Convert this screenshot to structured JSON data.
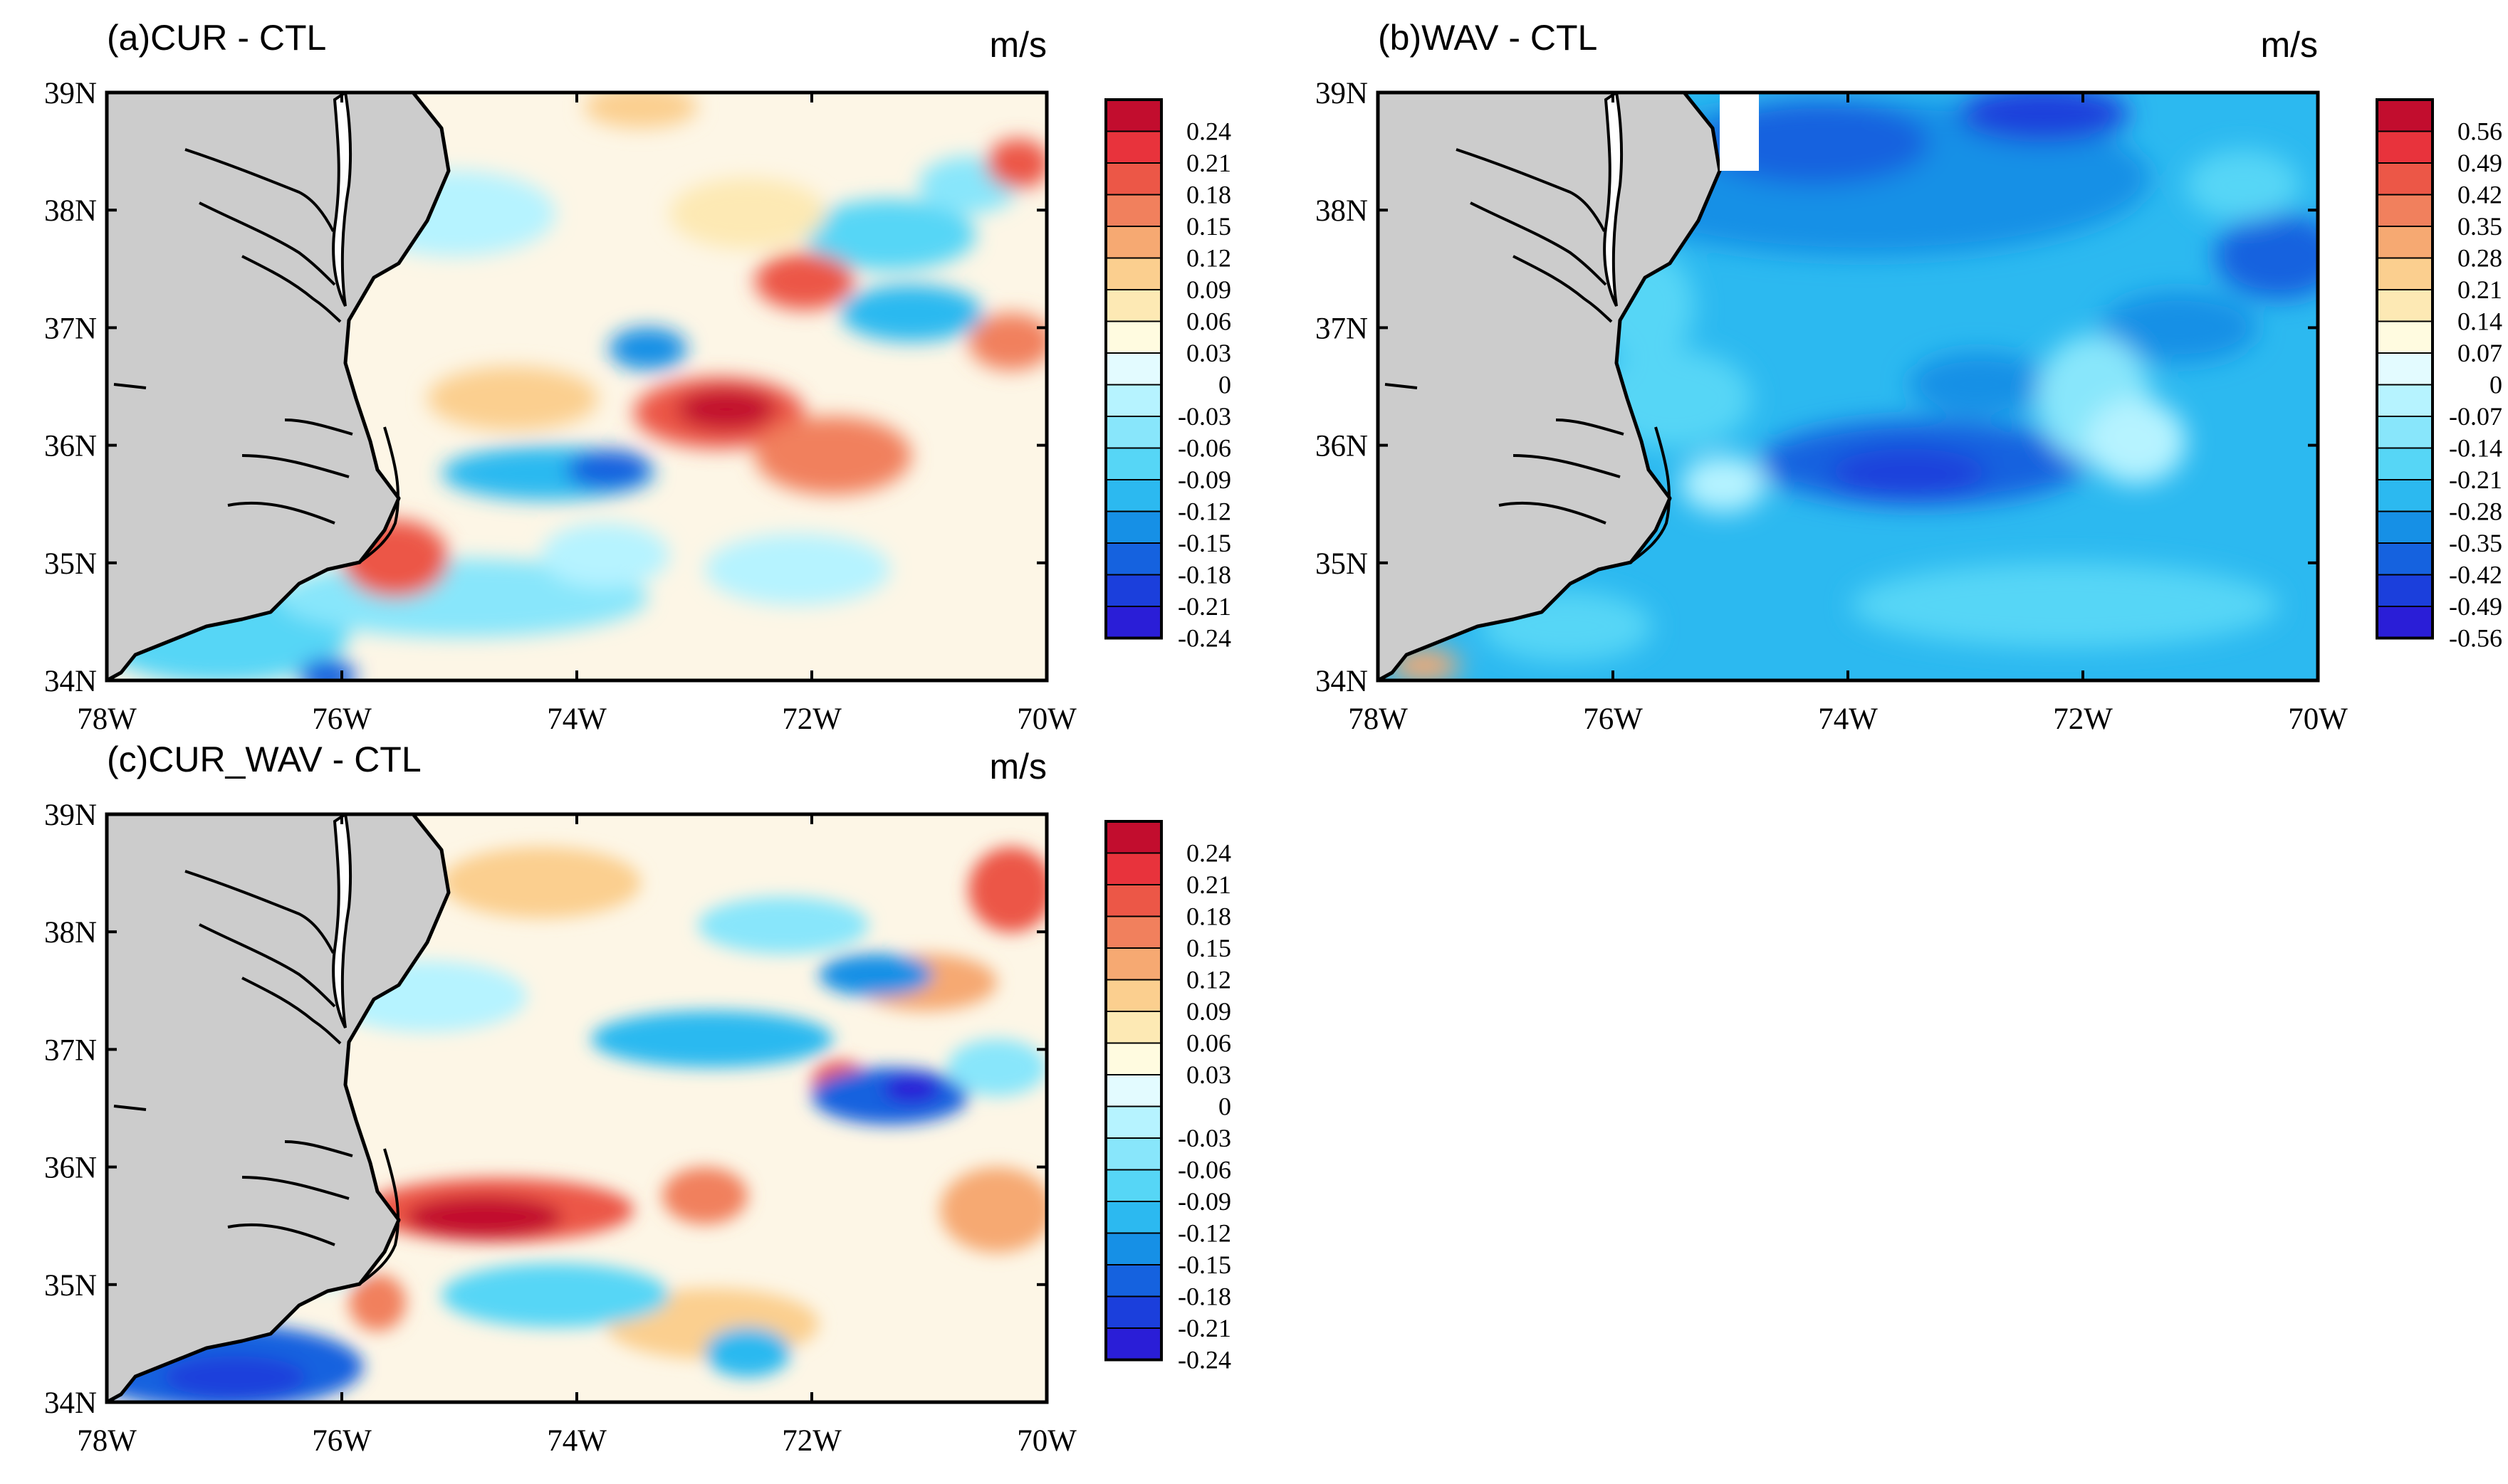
{
  "figure": {
    "xticks": [
      "78W",
      "76W",
      "74W",
      "72W",
      "70W"
    ],
    "yticks": [
      "39N",
      "38N",
      "37N",
      "36N",
      "35N",
      "34N"
    ],
    "palette": {
      "land": "#cccccc",
      "warm": [
        "#fffbe0",
        "#fde9b4",
        "#fbcf8f",
        "#f6a972",
        "#f1805d",
        "#ec5747",
        "#e8333c",
        "#c20d2e"
      ],
      "cool": [
        "#e3fbff",
        "#b6f3ff",
        "#88e6fb",
        "#56d6f6",
        "#2cb9f0",
        "#1690e6",
        "#1562df",
        "#1b3fdc",
        "#2a1ed7"
      ]
    },
    "panels": [
      {
        "id": "a",
        "title": "(a)CUR - CTL",
        "units": "m/s",
        "levels": [
          "0.24",
          "0.21",
          "0.18",
          "0.15",
          "0.12",
          "0.09",
          "0.06",
          "0.03",
          "0",
          "-0.03",
          "-0.06",
          "-0.09",
          "-0.12",
          "-0.15",
          "-0.18",
          "-0.21",
          "-0.24"
        ]
      },
      {
        "id": "b",
        "title": "(b)WAV - CTL",
        "units": "m/s",
        "levels": [
          "0.56",
          "0.49",
          "0.42",
          "0.35",
          "0.28",
          "0.21",
          "0.14",
          "0.07",
          "0",
          "-0.07",
          "-0.14",
          "-0.21",
          "-0.28",
          "-0.35",
          "-0.42",
          "-0.49",
          "-0.56"
        ]
      },
      {
        "id": "c",
        "title": "(c)CUR_WAV - CTL",
        "units": "m/s",
        "levels": [
          "0.24",
          "0.21",
          "0.18",
          "0.15",
          "0.12",
          "0.09",
          "0.06",
          "0.03",
          "0",
          "-0.03",
          "-0.06",
          "-0.09",
          "-0.12",
          "-0.15",
          "-0.18",
          "-0.21",
          "-0.24"
        ]
      }
    ]
  }
}
